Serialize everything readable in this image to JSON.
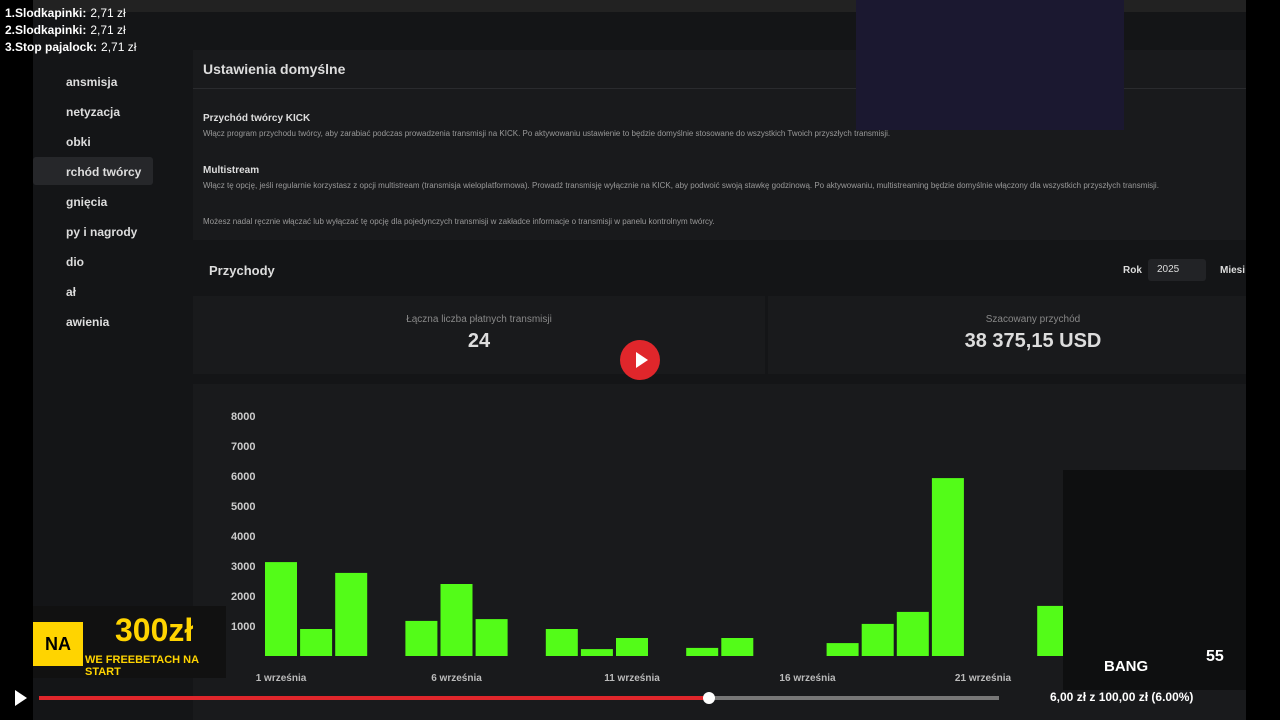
{
  "donation_list": [
    {
      "name": "1.Slodkapinki:",
      "amount": "2,71 zł"
    },
    {
      "name": "2.Slodkapinki:",
      "amount": "2,71 zł"
    },
    {
      "name": "3.Stop pajalock:",
      "amount": "2,71 zł"
    }
  ],
  "sidebar": [
    "ansmisja",
    "netyzacja",
    "obki",
    "rchód twórcy",
    "gnięcia",
    "py i nagrody",
    "dio",
    "ał",
    "awienia"
  ],
  "settings": {
    "title": "Ustawienia domyślne",
    "items": [
      {
        "title": "Przychód twórcy KICK",
        "text": "Włącz program przychodu twórcy, aby zarabiać podczas prowadzenia transmisji na KICK. Po aktywowaniu ustawienie to będzie domyślnie stosowane do wszystkich Twoich przyszłych transmisji."
      },
      {
        "title": "Multistream",
        "text": "Włącz tę opcję, jeśli regularnie korzystasz z opcji multistream (transmisja wieloplatformowa). Prowadź transmisję wyłącznie na KICK, aby podwoić swoją stawkę godzinową. Po aktywowaniu, multistreaming będzie domyślnie włączony dla wszystkich przyszłych transmisji."
      }
    ],
    "note": "Możesz nadal ręcznie włączać lub wyłączać tę opcję dla pojedynczych transmisji w zakładce informacje o transmisji w panelu kontrolnym twórcy."
  },
  "revenue": {
    "title": "Przychody",
    "year_label": "Rok",
    "year": "2025",
    "month_label": "Miesi",
    "stats": [
      {
        "label": "Łączna liczba płatnych transmisji",
        "value": "24"
      },
      {
        "label": "Szacowany przychód",
        "value": "38 375,15 USD"
      }
    ]
  },
  "chart_data": {
    "type": "bar",
    "color": "#53fc18",
    "categories": [
      "1 września",
      null,
      null,
      null,
      null,
      "6 września",
      null,
      null,
      null,
      null,
      "11 września",
      null,
      null,
      null,
      null,
      "16 września",
      null,
      null,
      null,
      null,
      "21 września",
      null,
      null
    ],
    "values": [
      3130,
      900,
      2770,
      0,
      1170,
      2400,
      1230,
      0,
      900,
      230,
      600,
      0,
      270,
      600,
      0,
      0,
      430,
      1070,
      1470,
      5930,
      0,
      0,
      1670
    ],
    "ylim": [
      0,
      8000
    ],
    "yticks": [
      1000,
      2000,
      3000,
      4000,
      5000,
      6000,
      7000,
      8000
    ]
  },
  "ad": {
    "brand": "NA",
    "amount": "300zł",
    "text": "WE FREEBETACH NA START"
  },
  "overlay": {
    "bang": "BANG",
    "count": "55",
    "goal": "6,00 zł z 100,00 zł (6.00%)"
  }
}
